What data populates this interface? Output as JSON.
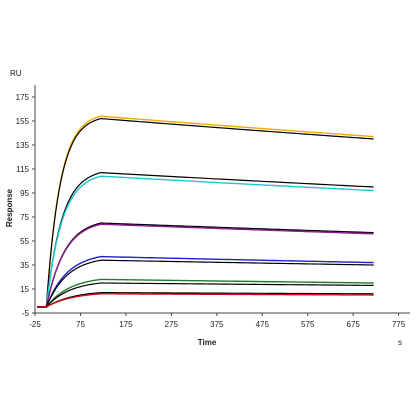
{
  "chart_data": {
    "type": "line",
    "xlabel": "Time",
    "ylabel": "Response",
    "x_unit": "s",
    "y_unit": "RU",
    "xlim": [
      -25,
      800
    ],
    "ylim": [
      -5,
      185
    ],
    "x_ticks": [
      -25,
      75,
      175,
      275,
      375,
      475,
      575,
      675,
      775
    ],
    "y_ticks": [
      -5,
      15,
      35,
      55,
      75,
      95,
      115,
      135,
      155,
      175
    ],
    "grid": false,
    "injection_start": 0,
    "injection_end": 120,
    "x_end": 720,
    "series": [
      {
        "color": "#f2a900",
        "baseline": 0,
        "plateau": 159,
        "end": 142,
        "tau": 30
      },
      {
        "color": "#000000",
        "baseline": 0,
        "plateau": 157,
        "end": 140,
        "tau": 30
      },
      {
        "color": "#000000",
        "baseline": 0,
        "plateau": 112,
        "end": 100,
        "tau": 34
      },
      {
        "color": "#1ec8d0",
        "baseline": 0,
        "plateau": 109,
        "end": 97,
        "tau": 34
      },
      {
        "color": "#000000",
        "baseline": 0,
        "plateau": 70,
        "end": 62,
        "tau": 40
      },
      {
        "color": "#8a1a8a",
        "baseline": 0,
        "plateau": 69,
        "end": 61,
        "tau": 40
      },
      {
        "color": "#2020d0",
        "baseline": 0,
        "plateau": 42,
        "end": 37,
        "tau": 46
      },
      {
        "color": "#000000",
        "baseline": 0,
        "plateau": 39,
        "end": 35,
        "tau": 46
      },
      {
        "color": "#1f7a2a",
        "baseline": 0,
        "plateau": 23,
        "end": 20,
        "tau": 52
      },
      {
        "color": "#000000",
        "baseline": 0,
        "plateau": 20,
        "end": 18,
        "tau": 52
      },
      {
        "color": "#000000",
        "baseline": 0,
        "plateau": 12,
        "end": 11,
        "tau": 58
      },
      {
        "color": "#d01010",
        "baseline": 0,
        "plateau": 11,
        "end": 10,
        "tau": 58
      }
    ]
  }
}
